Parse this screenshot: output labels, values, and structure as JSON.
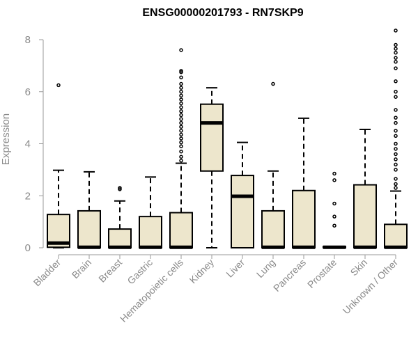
{
  "chart_data": {
    "type": "box",
    "title": "ENSG00000201793 - RN7SKP9",
    "xlabel": "",
    "ylabel": "Expression",
    "ylim": [
      0,
      8.3
    ],
    "yticks": [
      0,
      2,
      4,
      6,
      8
    ],
    "grid": false,
    "box_fill": "#ede6cc",
    "categories": [
      "Bladder",
      "Brain",
      "Breast",
      "Gastric",
      "Hematopoietic cells",
      "Kidney",
      "Liver",
      "Lung",
      "Pancreas",
      "Prostate",
      "Skin",
      "Unknown / Other"
    ],
    "boxes": [
      {
        "label": "Bladder",
        "whisker_low": 0,
        "q1": 0.02,
        "median": 0.18,
        "q3": 1.28,
        "whisker_high": 2.98,
        "outliers": [
          6.25
        ]
      },
      {
        "label": "Brain",
        "whisker_low": 0,
        "q1": 0,
        "median": 0.02,
        "q3": 1.42,
        "whisker_high": 2.92,
        "outliers": []
      },
      {
        "label": "Breast",
        "whisker_low": 0,
        "q1": 0,
        "median": 0.02,
        "q3": 0.72,
        "whisker_high": 1.8,
        "outliers": [
          2.25,
          2.3
        ]
      },
      {
        "label": "Gastric",
        "whisker_low": 0,
        "q1": 0,
        "median": 0.02,
        "q3": 1.2,
        "whisker_high": 2.72,
        "outliers": []
      },
      {
        "label": "Hematopoietic cells",
        "whisker_low": 0,
        "q1": 0,
        "median": 0.02,
        "q3": 1.35,
        "whisker_high": 3.25,
        "outliers": [
          3.35,
          3.5,
          3.7,
          3.9,
          4.05,
          4.2,
          4.35,
          4.5,
          4.65,
          4.8,
          4.95,
          5.1,
          5.25,
          5.4,
          5.55,
          5.7,
          5.85,
          6.0,
          6.15,
          6.3,
          6.55,
          6.75,
          6.8,
          7.6
        ]
      },
      {
        "label": "Kidney",
        "whisker_low": 0,
        "q1": 2.95,
        "median": 4.8,
        "q3": 5.52,
        "whisker_high": 6.15,
        "outliers": []
      },
      {
        "label": "Liver",
        "whisker_low": 0,
        "q1": 0,
        "median": 1.98,
        "q3": 2.78,
        "whisker_high": 4.05,
        "outliers": []
      },
      {
        "label": "Lung",
        "whisker_low": 0,
        "q1": 0,
        "median": 0.02,
        "q3": 1.42,
        "whisker_high": 2.95,
        "outliers": [
          6.3
        ]
      },
      {
        "label": "Pancreas",
        "whisker_low": 0,
        "q1": 0,
        "median": 0.02,
        "q3": 2.2,
        "whisker_high": 4.98,
        "outliers": []
      },
      {
        "label": "Prostate",
        "whisker_low": 0,
        "q1": 0,
        "median": 0.02,
        "q3": 0.05,
        "whisker_high": 0.05,
        "outliers": [
          0.85,
          1.2,
          1.7,
          2.6,
          2.85
        ]
      },
      {
        "label": "Skin",
        "whisker_low": 0,
        "q1": 0,
        "median": 0.02,
        "q3": 2.42,
        "whisker_high": 4.55,
        "outliers": []
      },
      {
        "label": "Unknown / Other",
        "whisker_low": 0,
        "q1": 0,
        "median": 0.02,
        "q3": 0.9,
        "whisker_high": 2.18,
        "outliers": [
          2.3,
          2.45,
          2.65,
          3.0,
          3.2,
          3.4,
          3.6,
          3.8,
          4.0,
          4.3,
          4.5,
          4.8,
          5.0,
          5.3,
          5.8,
          6.0,
          6.4,
          6.9,
          7.15,
          7.3,
          7.5,
          7.65,
          7.8,
          8.35
        ]
      }
    ]
  }
}
